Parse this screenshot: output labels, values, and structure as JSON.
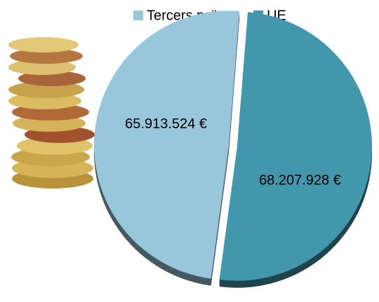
{
  "chart_data": {
    "type": "pie",
    "categories": [
      "Tercers països",
      "UE"
    ],
    "values": [
      65913524,
      68207928
    ],
    "value_labels": [
      "65.913.524 €",
      "68.207.928 €"
    ],
    "colors": [
      "#98c6da",
      "#4297ad"
    ],
    "legend": "top"
  }
}
